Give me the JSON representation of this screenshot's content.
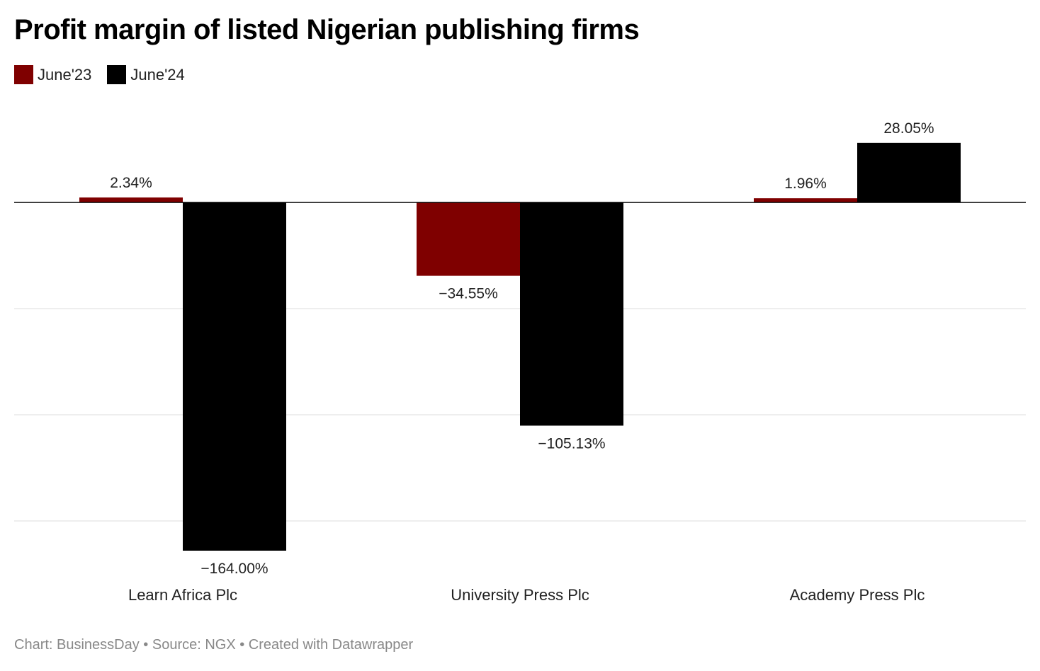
{
  "chart_data": {
    "type": "bar",
    "title": "Profit margin of listed Nigerian publishing firms",
    "categories": [
      "Learn Africa Plc",
      "University Press Plc",
      "Academy Press Plc"
    ],
    "series": [
      {
        "name": "June'23",
        "color": "#7f0000",
        "values": [
          2.34,
          -34.55,
          1.96
        ],
        "labels": [
          "2.34%",
          "−34.55%",
          "1.96%"
        ]
      },
      {
        "name": "June'24",
        "color": "#000000",
        "values": [
          -164.0,
          -105.13,
          28.05
        ],
        "labels": [
          "−164.00%",
          "−105.13%",
          "28.05%"
        ]
      }
    ],
    "ylim": [
      -170,
      30
    ],
    "gridlines": [
      0,
      -50,
      -100,
      -150
    ],
    "grid": true,
    "legend": "top-left",
    "xlabel": "",
    "ylabel": ""
  },
  "footer": "Chart: BusinessDay • Source: NGX • Created with Datawrapper"
}
